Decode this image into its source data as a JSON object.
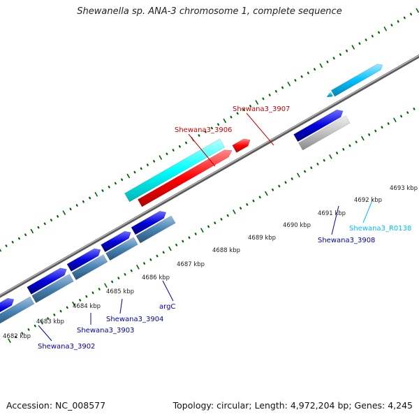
{
  "title": "Shewanella sp. ANA-3 chromosome 1, complete sequence",
  "footer": {
    "accession": "Accession: NC_008577",
    "summary": "Topology: circular; Length: 4,972,204 bp; Genes: 4,245"
  },
  "colors": {
    "forward_gene": "#0000cc",
    "forward_cds": "#00ffff",
    "red_gene": "#ff0000",
    "reverse_gene": "#0000dd",
    "reverse_cds": "#4682b4",
    "rna_gene": "#00bfff",
    "pseudo_gene": "#c0c0c0",
    "backbone": "#777777",
    "tick": "#006400",
    "label_blue": "#0000aa",
    "label_red": "#cc0000",
    "label_cyan": "#00bfff"
  },
  "ruler": {
    "labels": [
      "4682 kbp",
      "4683 kbp",
      "4684 kbp",
      "4685 kbp",
      "4686 kbp",
      "4687 kbp",
      "4688 kbp",
      "4689 kbp",
      "4690 kbp",
      "4691 kbp",
      "4692 kbp",
      "4693 kbp"
    ]
  },
  "genes": [
    {
      "name": "Shewana3_3902",
      "color": "label_blue"
    },
    {
      "name": "Shewana3_3903",
      "color": "label_blue"
    },
    {
      "name": "Shewana3_3904",
      "color": "label_blue"
    },
    {
      "name": "argC",
      "color": "label_blue"
    },
    {
      "name": "Shewana3_3906",
      "color": "label_red"
    },
    {
      "name": "Shewana3_3907",
      "color": "label_red"
    },
    {
      "name": "Shewana3_3908",
      "color": "label_blue"
    },
    {
      "name": "Shewana3_R0138",
      "color": "label_cyan"
    }
  ]
}
